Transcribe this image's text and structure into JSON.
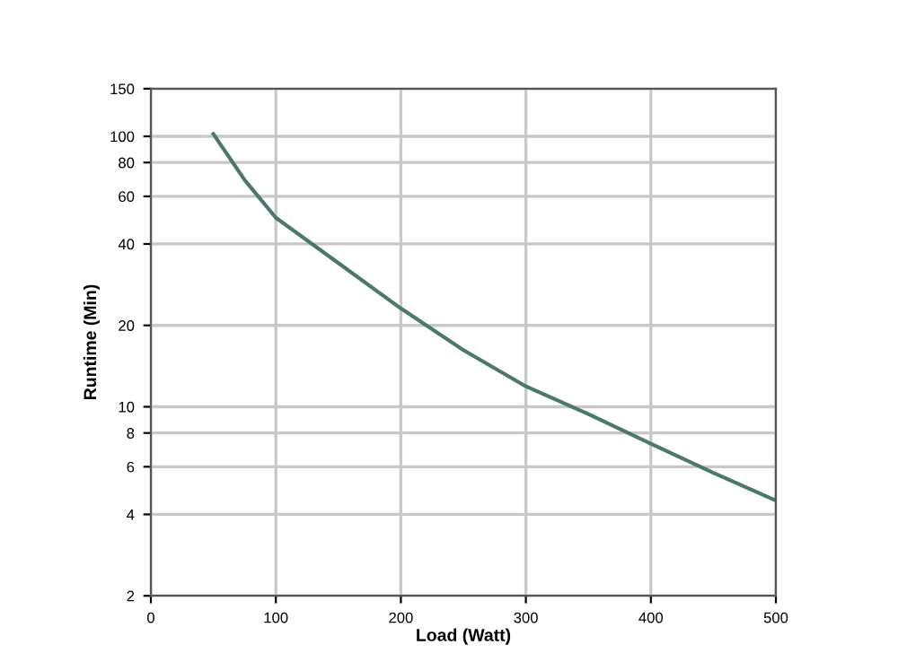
{
  "chart_data": {
    "type": "line",
    "xlabel": "Load (Watt)",
    "ylabel": "Runtime (Min)",
    "log": "y",
    "x": [
      50,
      75,
      100,
      150,
      200,
      250,
      300,
      350,
      400,
      450,
      500
    ],
    "series": [
      {
        "color": "#4a7a66",
        "values": [
          102,
          69,
          50,
          34,
          23.1,
          16.2,
          11.9,
          9.4,
          7.3,
          5.7,
          4.5
        ]
      }
    ],
    "xlim": [
      0,
      500
    ],
    "xticks": [
      0,
      100,
      200,
      300,
      400,
      500
    ],
    "ylim": [
      2,
      150
    ],
    "yticks": [
      2,
      4,
      6,
      8,
      10,
      20,
      40,
      60,
      80,
      100,
      150
    ],
    "grid": true,
    "legend": false,
    "marker": "none",
    "line_style": "solid"
  }
}
